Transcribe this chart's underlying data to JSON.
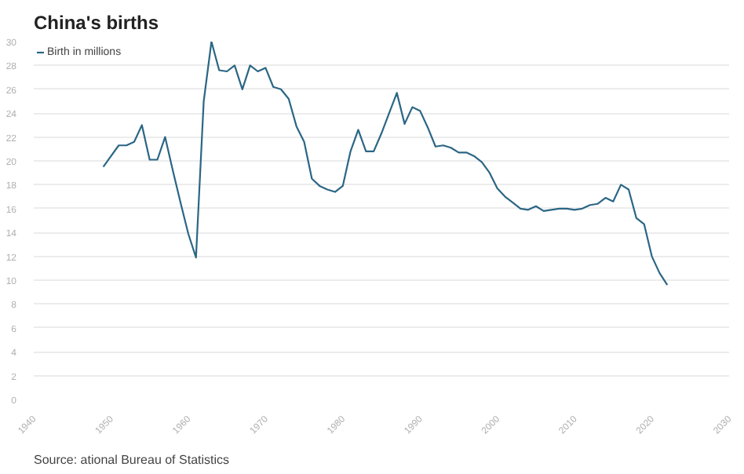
{
  "chart_data": {
    "type": "line",
    "title": "China's births",
    "x": [
      1949,
      1950,
      1951,
      1952,
      1953,
      1954,
      1955,
      1956,
      1957,
      1958,
      1959,
      1960,
      1961,
      1962,
      1963,
      1964,
      1965,
      1966,
      1967,
      1968,
      1969,
      1970,
      1971,
      1972,
      1973,
      1974,
      1975,
      1976,
      1977,
      1978,
      1979,
      1980,
      1981,
      1982,
      1983,
      1984,
      1985,
      1986,
      1987,
      1988,
      1989,
      1990,
      1991,
      1992,
      1993,
      1994,
      1995,
      1996,
      1997,
      1998,
      1999,
      2000,
      2001,
      2002,
      2003,
      2004,
      2005,
      2006,
      2007,
      2008,
      2009,
      2010,
      2011,
      2012,
      2013,
      2014,
      2015,
      2016,
      2017,
      2018,
      2019,
      2020,
      2021,
      2022
    ],
    "series": [
      {
        "name": "Birth in millions",
        "color": "#2b6685",
        "values": [
          19.5,
          20.4,
          21.3,
          21.3,
          21.6,
          23.0,
          20.1,
          20.1,
          22.0,
          19.2,
          16.5,
          13.9,
          11.9,
          25.0,
          30.0,
          27.6,
          27.5,
          28.0,
          26.0,
          28.0,
          27.5,
          27.8,
          26.2,
          26.0,
          25.2,
          22.9,
          21.6,
          18.5,
          17.9,
          17.6,
          17.4,
          17.9,
          20.8,
          22.6,
          20.8,
          20.8,
          22.3,
          24.0,
          25.7,
          23.1,
          24.5,
          24.2,
          22.8,
          21.2,
          21.3,
          21.1,
          20.7,
          20.7,
          20.4,
          19.9,
          19.0,
          17.7,
          17.0,
          16.5,
          16.0,
          15.9,
          16.2,
          15.8,
          15.9,
          16.0,
          16.0,
          15.9,
          16.0,
          16.3,
          16.4,
          16.9,
          16.6,
          18.0,
          17.6,
          15.2,
          14.7,
          12.0,
          10.6,
          9.6
        ]
      }
    ],
    "xlim": [
      1940,
      2030
    ],
    "xticks": [
      1940,
      1950,
      1960,
      1970,
      1980,
      1990,
      2000,
      2010,
      2020,
      2030
    ],
    "ylim": [
      0,
      30
    ],
    "yticks": [
      0,
      2,
      4,
      6,
      8,
      10,
      12,
      14,
      16,
      18,
      20,
      22,
      24,
      26,
      28,
      30
    ],
    "grid": "y",
    "legend": "top left",
    "annotations": [
      "Source: ational Bureau of Statistics"
    ]
  }
}
